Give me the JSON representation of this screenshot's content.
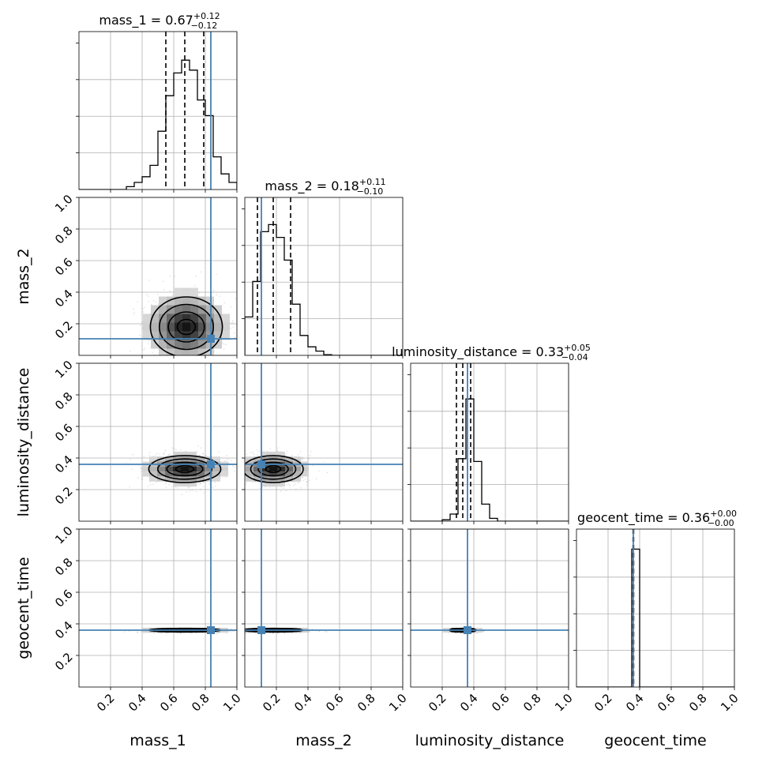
{
  "chart_data": {
    "type": "corner",
    "parameters": [
      "mass_1",
      "mass_2",
      "luminosity_distance",
      "geocent_time"
    ],
    "axis_range": [
      0,
      1
    ],
    "tick_values": [
      0.2,
      0.4,
      0.6,
      0.8,
      1.0
    ],
    "tick_labels": [
      "0.2",
      "0.4",
      "0.6",
      "0.8",
      "1.0"
    ],
    "grid": true,
    "truth_color": "#4682b4",
    "truths": {
      "mass_1": 0.835,
      "mass_2": 0.105,
      "luminosity_distance": 0.36,
      "geocent_time": 0.36
    },
    "marginals": [
      {
        "parameter": "mass_1",
        "title_text": "mass_1 = 0.67",
        "title_sup": "+0.12",
        "title_sub": "−0.12",
        "median": 0.67,
        "q16": 0.55,
        "q84": 0.79,
        "bin_edges": [
          0.0,
          0.05,
          0.1,
          0.15,
          0.2,
          0.25,
          0.3,
          0.35,
          0.4,
          0.45,
          0.5,
          0.55,
          0.6,
          0.65,
          0.7,
          0.75,
          0.8,
          0.85,
          0.9,
          0.95,
          1.0
        ],
        "counts": [
          0,
          0,
          0,
          0,
          0,
          0,
          0.02,
          0.05,
          0.09,
          0.17,
          0.41,
          0.66,
          0.82,
          0.91,
          0.84,
          0.63,
          0.52,
          0.23,
          0.11,
          0.05
        ],
        "ylim": [
          0,
          1.0
        ]
      },
      {
        "parameter": "mass_2",
        "title_text": "mass_2 = 0.18",
        "title_sup": "+0.11",
        "title_sub": "−0.10",
        "median": 0.18,
        "q16": 0.08,
        "q84": 0.29,
        "bin_edges": [
          0.0,
          0.05,
          0.1,
          0.15,
          0.2,
          0.25,
          0.3,
          0.35,
          0.4,
          0.45,
          0.5,
          0.55,
          0.6,
          0.65,
          0.7,
          0.75,
          0.8,
          0.85,
          0.9,
          0.95,
          1.0
        ],
        "counts": [
          0.27,
          0.52,
          0.87,
          0.92,
          0.83,
          0.67,
          0.36,
          0.14,
          0.06,
          0.03,
          0.005,
          0,
          0,
          0,
          0,
          0,
          0,
          0,
          0,
          0
        ],
        "ylim": [
          0,
          1.0
        ]
      },
      {
        "parameter": "luminosity_distance",
        "title_text": "luminosity_distance = 0.33",
        "title_sup": "+0.05",
        "title_sub": "−0.04",
        "median": 0.33,
        "q16": 0.29,
        "q84": 0.38,
        "bin_edges": [
          0.0,
          0.05,
          0.1,
          0.15,
          0.2,
          0.25,
          0.3,
          0.35,
          0.4,
          0.45,
          0.5,
          0.55,
          0.6,
          0.65,
          0.7,
          0.75,
          0.8,
          0.85,
          0.9,
          0.95,
          1.0
        ],
        "counts": [
          0,
          0,
          0,
          0,
          0.01,
          0.05,
          0.44,
          0.86,
          0.42,
          0.12,
          0.02,
          0,
          0,
          0,
          0,
          0,
          0,
          0,
          0,
          0
        ],
        "ylim": [
          0,
          1.0
        ]
      },
      {
        "parameter": "geocent_time",
        "title_text": "geocent_time = 0.36",
        "title_sup": "+0.00",
        "title_sub": "−0.00",
        "median": 0.36,
        "q16": 0.358,
        "q84": 0.362,
        "bin_edges": [
          0.0,
          0.05,
          0.1,
          0.15,
          0.2,
          0.25,
          0.3,
          0.35,
          0.4,
          0.45,
          0.5,
          0.55,
          0.6,
          0.65,
          0.7,
          0.75,
          0.8,
          0.85,
          0.9,
          0.95,
          1.0
        ],
        "counts": [
          0,
          0,
          0,
          0,
          0,
          0,
          0,
          0.97,
          0,
          0,
          0,
          0,
          0,
          0,
          0,
          0,
          0,
          0,
          0,
          0
        ],
        "ylim": [
          0,
          1.0
        ]
      }
    ],
    "joint_panels": [
      {
        "x": "mass_1",
        "y": "mass_2",
        "center": [
          0.68,
          0.18
        ],
        "sigma": [
          0.12,
          0.1
        ]
      },
      {
        "x": "mass_1",
        "y": "luminosity_distance",
        "center": [
          0.67,
          0.33
        ],
        "sigma": [
          0.12,
          0.045
        ]
      },
      {
        "x": "mass_2",
        "y": "luminosity_distance",
        "center": [
          0.18,
          0.33
        ],
        "sigma": [
          0.1,
          0.045
        ]
      },
      {
        "x": "mass_1",
        "y": "geocent_time",
        "center": [
          0.67,
          0.36
        ],
        "sigma": [
          0.12,
          0.006
        ]
      },
      {
        "x": "mass_2",
        "y": "geocent_time",
        "center": [
          0.18,
          0.36
        ],
        "sigma": [
          0.1,
          0.006
        ]
      },
      {
        "x": "luminosity_distance",
        "y": "geocent_time",
        "center": [
          0.33,
          0.36
        ],
        "sigma": [
          0.045,
          0.006
        ]
      }
    ]
  }
}
